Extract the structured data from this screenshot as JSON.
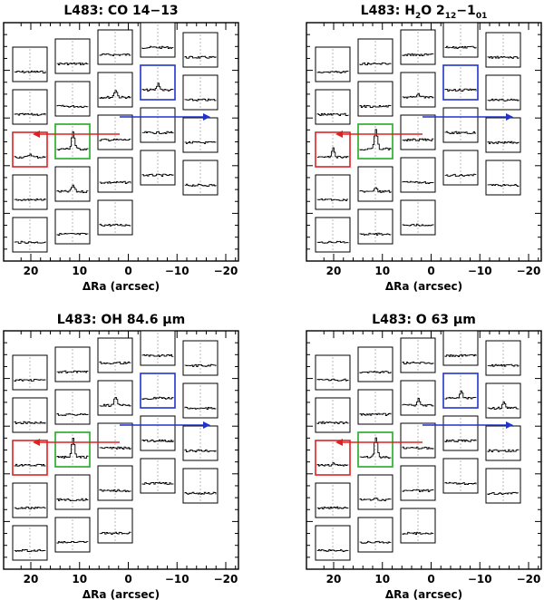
{
  "panels": [
    {
      "id": "co",
      "title": "L483: CO 14−13",
      "title_parts": [
        {
          "t": "L483: CO 14−13"
        }
      ],
      "xlabel": "ΔRa (arcsec)",
      "xticks": [
        20,
        10,
        0,
        -10,
        -20
      ],
      "xtick_labels": [
        "20",
        "10",
        "0",
        "−10",
        "−20"
      ],
      "spectra": [
        {
          "c": "",
          "p": 0
        },
        {
          "c": "",
          "p": 0
        },
        {
          "c": "",
          "p": 0
        },
        {
          "c": "",
          "p": 0
        },
        {
          "c": "",
          "p": 0
        },
        {
          "c": "",
          "p": 0
        },
        {
          "c": "",
          "p": 0
        },
        {
          "c": "",
          "p": 0.35
        },
        {
          "c": "blue",
          "p": 0.3
        },
        {
          "c": "",
          "p": 0
        },
        {
          "c": "red",
          "p": 0.15
        },
        {
          "c": "green",
          "p": 0.8
        },
        {
          "c": "",
          "p": 0
        },
        {
          "c": "",
          "p": 0
        },
        {
          "c": "",
          "p": 0
        },
        {
          "c": "",
          "p": 0
        },
        {
          "c": "",
          "p": 0.3
        },
        {
          "c": "",
          "p": 0
        },
        {
          "c": "",
          "p": 0
        },
        {
          "c": "",
          "p": 0
        },
        {
          "c": "",
          "p": 0
        },
        {
          "c": "",
          "p": 0
        },
        {
          "c": "",
          "p": 0
        }
      ]
    },
    {
      "id": "h2o",
      "title": "L483: H2O 212−101",
      "title_parts": [
        {
          "t": "L483: H"
        },
        {
          "t": "2",
          "s": "sub"
        },
        {
          "t": "O 2"
        },
        {
          "t": "12",
          "s": "sub"
        },
        {
          "t": "−1"
        },
        {
          "t": "01",
          "s": "sub"
        }
      ],
      "xlabel": "ΔRa (arcsec)",
      "xticks": [
        20,
        10,
        0,
        -10,
        -20
      ],
      "xtick_labels": [
        "20",
        "10",
        "0",
        "−10",
        "−20"
      ],
      "spectra": [
        {
          "c": "",
          "p": 0
        },
        {
          "c": "",
          "p": 0
        },
        {
          "c": "",
          "p": 0
        },
        {
          "c": "",
          "p": 0
        },
        {
          "c": "",
          "p": 0
        },
        {
          "c": "",
          "p": 0
        },
        {
          "c": "",
          "p": 0
        },
        {
          "c": "",
          "p": 0.15
        },
        {
          "c": "blue",
          "p": 0
        },
        {
          "c": "",
          "p": 0
        },
        {
          "c": "red",
          "p": 0.4
        },
        {
          "c": "green",
          "p": 0.9
        },
        {
          "c": "",
          "p": 0
        },
        {
          "c": "",
          "p": 0
        },
        {
          "c": "",
          "p": 0
        },
        {
          "c": "",
          "p": 0
        },
        {
          "c": "",
          "p": 0.15
        },
        {
          "c": "",
          "p": 0
        },
        {
          "c": "",
          "p": 0
        },
        {
          "c": "",
          "p": 0
        },
        {
          "c": "",
          "p": 0
        },
        {
          "c": "",
          "p": 0
        },
        {
          "c": "",
          "p": 0
        }
      ]
    },
    {
      "id": "oh",
      "title": "L483: OH 84.6 μm",
      "title_parts": [
        {
          "t": "L483: OH 84.6 μm"
        }
      ],
      "xlabel": "ΔRa (arcsec)",
      "xticks": [
        20,
        10,
        0,
        -10,
        -20
      ],
      "xtick_labels": [
        "20",
        "10",
        "0",
        "−10",
        "−20"
      ],
      "spectra": [
        {
          "c": "",
          "p": 0
        },
        {
          "c": "",
          "p": 0
        },
        {
          "c": "",
          "p": 0
        },
        {
          "c": "",
          "p": 0
        },
        {
          "c": "",
          "p": 0
        },
        {
          "c": "",
          "p": 0
        },
        {
          "c": "",
          "p": 0
        },
        {
          "c": "",
          "p": 0.4
        },
        {
          "c": "blue",
          "p": 0
        },
        {
          "c": "",
          "p": 0
        },
        {
          "c": "red",
          "p": 0
        },
        {
          "c": "green",
          "p": 0.85
        },
        {
          "c": "",
          "p": 0
        },
        {
          "c": "",
          "p": 0
        },
        {
          "c": "",
          "p": 0
        },
        {
          "c": "",
          "p": 0
        },
        {
          "c": "",
          "p": 0
        },
        {
          "c": "",
          "p": 0
        },
        {
          "c": "",
          "p": 0
        },
        {
          "c": "",
          "p": 0
        },
        {
          "c": "",
          "p": 0
        },
        {
          "c": "",
          "p": 0
        },
        {
          "c": "",
          "p": 0
        }
      ]
    },
    {
      "id": "o63",
      "title": "L483: O 63 μm",
      "title_parts": [
        {
          "t": "L483: O 63 μm"
        }
      ],
      "xlabel": "ΔRa (arcsec)",
      "xticks": [
        20,
        10,
        0,
        -10,
        -20
      ],
      "xtick_labels": [
        "20",
        "10",
        "0",
        "−10",
        "−20"
      ],
      "spectra": [
        {
          "c": "",
          "p": 0
        },
        {
          "c": "",
          "p": 0
        },
        {
          "c": "",
          "p": 0
        },
        {
          "c": "",
          "p": 0
        },
        {
          "c": "",
          "p": 0
        },
        {
          "c": "",
          "p": 0
        },
        {
          "c": "",
          "p": 0
        },
        {
          "c": "",
          "p": 0.3
        },
        {
          "c": "blue",
          "p": 0.3
        },
        {
          "c": "",
          "p": 0.25
        },
        {
          "c": "red",
          "p": 0.1
        },
        {
          "c": "green",
          "p": 0.95
        },
        {
          "c": "",
          "p": 0
        },
        {
          "c": "",
          "p": 0
        },
        {
          "c": "",
          "p": 0
        },
        {
          "c": "",
          "p": 0
        },
        {
          "c": "",
          "p": 0.1
        },
        {
          "c": "",
          "p": 0
        },
        {
          "c": "",
          "p": 0
        },
        {
          "c": "",
          "p": 0
        },
        {
          "c": "",
          "p": 0
        },
        {
          "c": "",
          "p": 0
        },
        {
          "c": "",
          "p": 0
        }
      ]
    }
  ],
  "colors": {
    "red": "#dd2222",
    "blue": "#2233cc",
    "green": "#22aa22",
    "ink": "#000000",
    "dash": "#9a9a9a"
  }
}
